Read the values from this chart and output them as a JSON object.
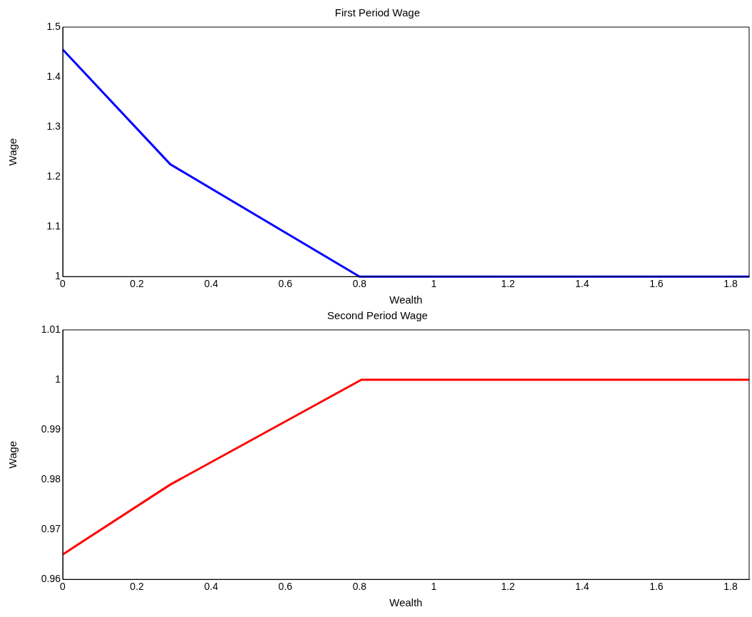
{
  "chart_data": [
    {
      "type": "line",
      "title": "First Period Wage",
      "xlabel": "Wealth",
      "ylabel": "Wage",
      "xlim": [
        0,
        1.85
      ],
      "xticks": [
        0,
        0.2,
        0.4,
        0.6,
        0.8,
        1,
        1.2,
        1.4,
        1.6,
        1.8
      ],
      "ylim": [
        1,
        1.5
      ],
      "yticks": [
        1,
        1.1,
        1.2,
        1.3,
        1.4,
        1.5
      ],
      "grid": false,
      "legend": false,
      "marker": "none",
      "line_style": "solid",
      "x": [
        0,
        0.29,
        0.8,
        1.85
      ],
      "series": [
        {
          "color": "#0000ff",
          "values": [
            1.455,
            1.225,
            1,
            1
          ]
        }
      ]
    },
    {
      "type": "line",
      "title": "Second Period Wage",
      "xlabel": "Wealth",
      "ylabel": "Wage",
      "xlim": [
        0,
        1.85
      ],
      "xticks": [
        0,
        0.2,
        0.4,
        0.6,
        0.8,
        1,
        1.2,
        1.4,
        1.6,
        1.8
      ],
      "ylim": [
        0.96,
        1.01
      ],
      "yticks": [
        0.96,
        0.97,
        0.98,
        0.99,
        1,
        1.01
      ],
      "grid": false,
      "legend": false,
      "marker": "none",
      "line_style": "solid",
      "x": [
        0,
        0.29,
        0.805,
        1.85
      ],
      "series": [
        {
          "color": "#ff0000",
          "values": [
            0.965,
            0.979,
            1,
            1
          ]
        }
      ]
    }
  ]
}
